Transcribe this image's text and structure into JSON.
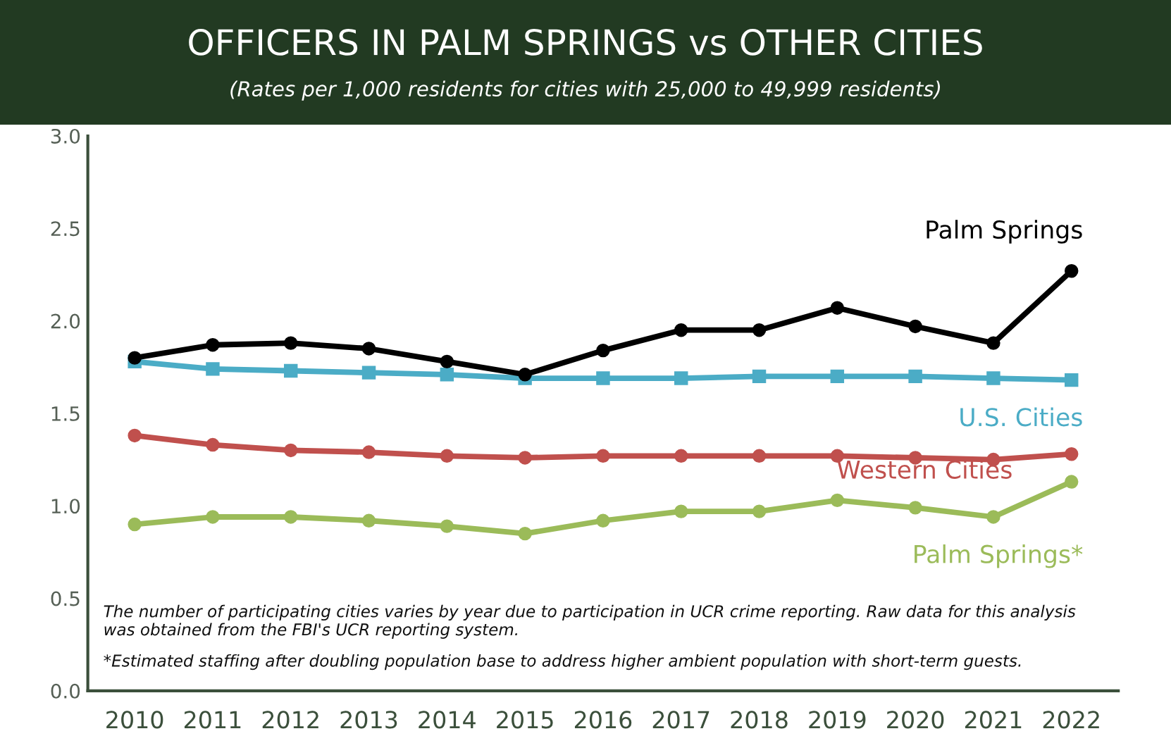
{
  "chart_data": {
    "type": "line",
    "title": "OFFICERS IN PALM SPRINGS vs OTHER CITIES",
    "subtitle": "(Rates per 1,000 residents for cities with 25,000 to 49,999 residents)",
    "categories": [
      "2010",
      "2011",
      "2012",
      "2013",
      "2014",
      "2015",
      "2016",
      "2017",
      "2018",
      "2019",
      "2020",
      "2021",
      "2022"
    ],
    "series": [
      {
        "name": "Palm Springs",
        "color": "#000000",
        "marker": "circle",
        "values": [
          1.8,
          1.87,
          1.88,
          1.85,
          1.78,
          1.71,
          1.84,
          1.95,
          1.95,
          2.07,
          1.97,
          1.88,
          2.27
        ]
      },
      {
        "name": "U.S. Cities",
        "color": "#4bacc6",
        "marker": "square",
        "values": [
          1.78,
          1.74,
          1.73,
          1.72,
          1.71,
          1.69,
          1.69,
          1.69,
          1.7,
          1.7,
          1.7,
          1.69,
          1.68
        ]
      },
      {
        "name": "Western Cities",
        "color": "#c0504d",
        "marker": "circle",
        "values": [
          1.38,
          1.33,
          1.3,
          1.29,
          1.27,
          1.26,
          1.27,
          1.27,
          1.27,
          1.27,
          1.26,
          1.25,
          1.28
        ]
      },
      {
        "name": "Palm Springs*",
        "color": "#9bbb59",
        "marker": "circle",
        "values": [
          0.9,
          0.94,
          0.94,
          0.92,
          0.89,
          0.85,
          0.92,
          0.97,
          0.97,
          1.03,
          0.99,
          0.94,
          1.13
        ]
      }
    ],
    "ylim": [
      0,
      3
    ],
    "yticks": [
      {
        "value": 0,
        "label": "0.0"
      },
      {
        "value": 0.5,
        "label": "0.5"
      },
      {
        "value": 1,
        "label": "1.0"
      },
      {
        "value": 1.5,
        "label": "1.5"
      },
      {
        "value": 2,
        "label": "2.0"
      },
      {
        "value": 2.5,
        "label": "2.5"
      },
      {
        "value": 3,
        "label": "3.0"
      }
    ],
    "grid": false,
    "legend": false,
    "line_style": "solid",
    "annotations": [
      "The number of participating cities varies by year due to participation in UCR crime reporting. Raw data for this analysis was obtained from the FBI's UCR reporting system.",
      "*Estimated staffing after doubling population base to address higher ambient population with short-term guests."
    ]
  }
}
